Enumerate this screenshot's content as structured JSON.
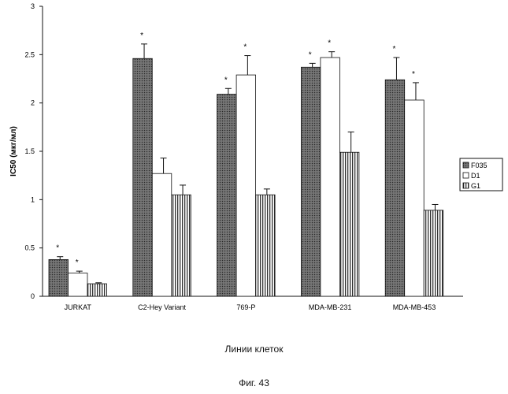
{
  "chart_data": {
    "type": "bar",
    "categories": [
      "JURKAT",
      "C2-Hey Variant",
      "769-P",
      "MDA-MB-231",
      "MDA-MB-453"
    ],
    "series": [
      {
        "name": "F035",
        "values": [
          0.38,
          2.46,
          2.09,
          2.37,
          2.24
        ],
        "errors": [
          0.03,
          0.15,
          0.06,
          0.04,
          0.23
        ],
        "pattern": "dots"
      },
      {
        "name": "D1",
        "values": [
          0.24,
          1.27,
          2.29,
          2.47,
          2.03
        ],
        "errors": [
          0.02,
          0.16,
          0.2,
          0.06,
          0.18
        ],
        "pattern": "blank"
      },
      {
        "name": "G1",
        "values": [
          0.13,
          1.05,
          1.05,
          1.49,
          0.89
        ],
        "errors": [
          0.01,
          0.1,
          0.06,
          0.21,
          0.06
        ],
        "pattern": "vlines"
      }
    ],
    "significance": [
      [
        true,
        true,
        false
      ],
      [
        true,
        false,
        false
      ],
      [
        true,
        true,
        false
      ],
      [
        true,
        true,
        false
      ],
      [
        true,
        true,
        false
      ]
    ],
    "significance_marker": "*",
    "ylabel": "IC50 (мкг/мл)",
    "xlabel": "Линии клеток",
    "ylim": [
      0,
      3
    ],
    "yticks": [
      "0",
      "0.5",
      "1",
      "1.5",
      "2",
      "2.5",
      "3"
    ],
    "legend_position": "right",
    "grid": false
  },
  "caption": "Фиг. 43",
  "colors": {
    "dark_fill": "#5a5a5a",
    "light_fill": "#ffffff",
    "stroke": "#111111"
  }
}
